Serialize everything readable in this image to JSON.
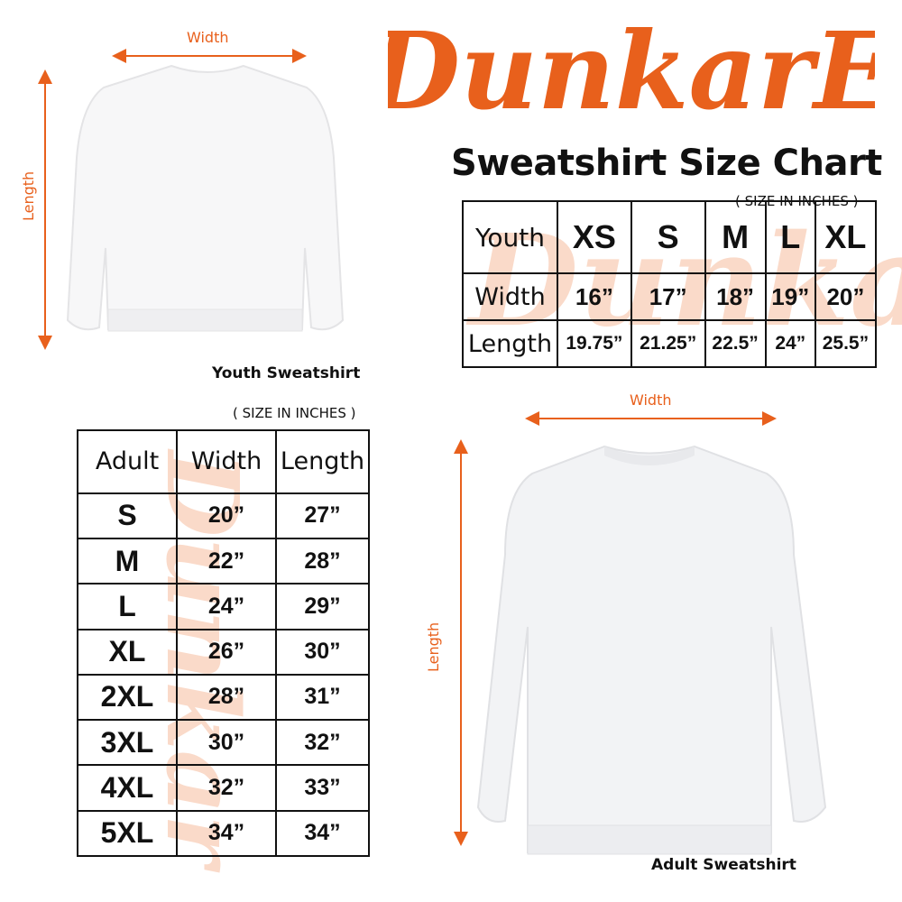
{
  "brand": {
    "logo_text": "DunkarE",
    "color": "#e8601c"
  },
  "title": "Sweatshirt Size Chart",
  "youth": {
    "note": "( SIZE IN INCHES )",
    "caption": "Youth Sweatshirt",
    "width_label": "Width",
    "length_label": "Length",
    "header": [
      "Youth",
      "XS",
      "S",
      "M",
      "L",
      "XL"
    ],
    "rows": [
      [
        "Width",
        "16”",
        "17”",
        "18”",
        "19”",
        "20”"
      ],
      [
        "Length",
        "19.75”",
        "21.25”",
        "22.5”",
        "24”",
        "25.5”"
      ]
    ]
  },
  "adult": {
    "note": "( SIZE IN INCHES )",
    "caption": "Adult Sweatshirt",
    "width_label": "Width",
    "length_label": "Length",
    "header": [
      "Adult",
      "Width",
      "Length"
    ],
    "rows": [
      [
        "S",
        "20”",
        "27”"
      ],
      [
        "M",
        "22”",
        "28”"
      ],
      [
        "L",
        "24”",
        "29”"
      ],
      [
        "XL",
        "26”",
        "30”"
      ],
      [
        "2XL",
        "28”",
        "31”"
      ],
      [
        "3XL",
        "30”",
        "32”"
      ],
      [
        "4XL",
        "32”",
        "33”"
      ],
      [
        "5XL",
        "34”",
        "34”"
      ]
    ]
  }
}
